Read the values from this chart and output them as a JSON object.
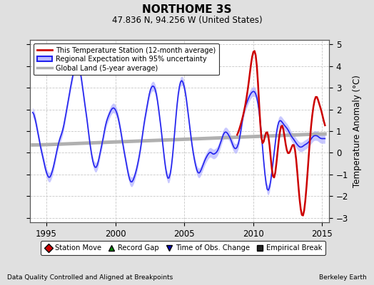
{
  "title": "NORTHOME 3S",
  "subtitle": "47.836 N, 94.256 W (United States)",
  "ylabel": "Temperature Anomaly (°C)",
  "xlabel_left": "Data Quality Controlled and Aligned at Breakpoints",
  "xlabel_right": "Berkeley Earth",
  "xlim": [
    1993.8,
    2015.5
  ],
  "ylim": [
    -3.2,
    5.2
  ],
  "yticks": [
    -3,
    -2,
    -1,
    0,
    1,
    2,
    3,
    4,
    5
  ],
  "xticks": [
    1995,
    2000,
    2005,
    2010,
    2015
  ],
  "bg_color": "#e0e0e0",
  "plot_bg_color": "#ffffff",
  "grid_color": "#c8c8c8",
  "regional_color": "#2222ee",
  "regional_fill_color": "#bbbbff",
  "station_color": "#cc0000",
  "global_color": "#b0b0b0",
  "obs_change_marker_color": "#0000bb",
  "station_move_color": "#cc0000",
  "record_gap_color": "#008800",
  "empirical_break_color": "#222222"
}
